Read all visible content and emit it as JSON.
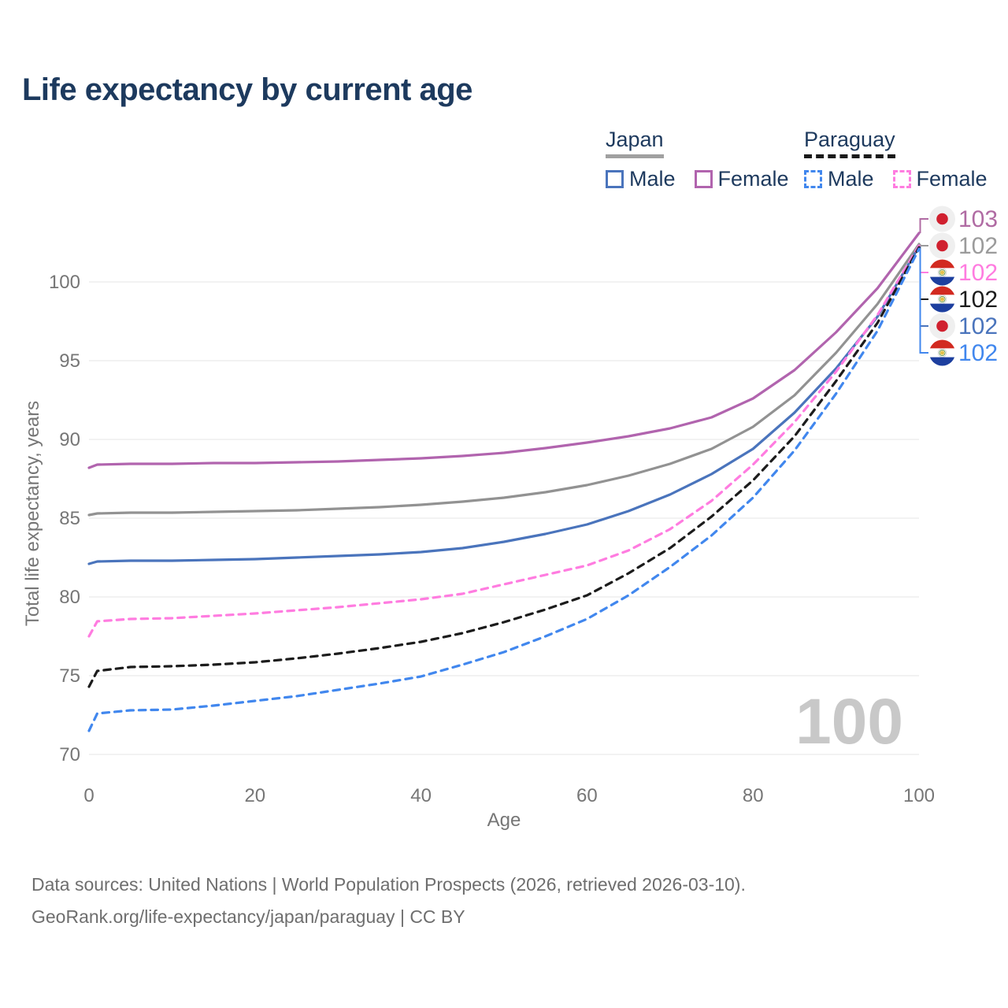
{
  "page": {
    "title": "Life expectancy by current age"
  },
  "colors": {
    "title": "#1d3a5e",
    "legend_text": "#1e3a5e",
    "japan_underline": "#a0a0a0",
    "paraguay_underline": "#1a1a1a",
    "japan_male": "#4a74bc",
    "japan_female": "#b164ae",
    "japan_both": "#929292",
    "paraguay_male": "#4187ee",
    "paraguay_female": "#ff7ce0",
    "paraguay_both": "#1c1c1c",
    "grid": "#e9e9e9",
    "axis_text": "#767676",
    "watermark": "#c8c8c8",
    "footer_text": "#6e6e6e",
    "flag_japan_bg": "#efefef",
    "flag_japan_sun": "#d0202f",
    "flag_paraguay_red": "#d22a20",
    "flag_paraguay_blue": "#1d3f9f",
    "flag_paraguay_white": "#ffffff",
    "flag_emblem_yellow": "#e3c14b",
    "flag_emblem_green": "#5e9444"
  },
  "legend": {
    "japan": {
      "label": "Japan",
      "male": "Male",
      "female": "Female"
    },
    "paraguay": {
      "label": "Paraguay",
      "male": "Male",
      "female": "Female"
    }
  },
  "chart_data": {
    "type": "line",
    "title": "Life expectancy by current age",
    "xlabel": "Age",
    "ylabel": "Total life expectancy, years",
    "xlim": [
      0,
      100
    ],
    "ylim": [
      70,
      103.5
    ],
    "x_ticks": [
      0,
      20,
      40,
      60,
      80,
      100
    ],
    "y_ticks": [
      70,
      75,
      80,
      85,
      90,
      95,
      100
    ],
    "grid": "horizontal-only",
    "legend_position": "top-right",
    "watermark": "100",
    "ages": [
      0,
      1,
      5,
      10,
      15,
      20,
      25,
      30,
      35,
      40,
      45,
      50,
      55,
      60,
      65,
      70,
      75,
      80,
      85,
      90,
      95,
      100
    ],
    "series": [
      {
        "id": "japan-female",
        "name": "Japan Female",
        "country": "Japan",
        "sex": "Female",
        "color": "#b164ae",
        "dash": "solid",
        "flag": "japan",
        "label_row": 0,
        "end_label": "103",
        "label_color": "#b06ba3",
        "values": [
          88.2,
          88.4,
          88.45,
          88.45,
          88.5,
          88.5,
          88.55,
          88.6,
          88.7,
          88.8,
          88.95,
          89.15,
          89.45,
          89.8,
          90.2,
          90.7,
          91.4,
          92.6,
          94.4,
          96.8,
          99.6,
          103.1
        ]
      },
      {
        "id": "japan-both",
        "name": "Japan",
        "country": "Japan",
        "sex": "Both",
        "color": "#929292",
        "dash": "solid",
        "flag": "japan",
        "label_row": 1,
        "end_label": "102",
        "label_color": "#9b9b9b",
        "values": [
          85.2,
          85.3,
          85.35,
          85.35,
          85.4,
          85.45,
          85.5,
          85.6,
          85.7,
          85.85,
          86.05,
          86.3,
          86.65,
          87.1,
          87.7,
          88.45,
          89.4,
          90.8,
          92.8,
          95.5,
          98.6,
          102.4
        ]
      },
      {
        "id": "japan-male",
        "name": "Japan Male",
        "country": "Japan",
        "sex": "Male",
        "color": "#4a74bc",
        "dash": "solid",
        "flag": "japan",
        "label_row": 4,
        "end_label": "102",
        "label_color": "#4a74bc",
        "values": [
          82.1,
          82.25,
          82.3,
          82.3,
          82.35,
          82.4,
          82.5,
          82.6,
          82.7,
          82.85,
          83.1,
          83.5,
          84.0,
          84.6,
          85.45,
          86.5,
          87.8,
          89.4,
          91.7,
          94.5,
          97.8,
          102.25
        ]
      },
      {
        "id": "paraguay-female",
        "name": "Paraguay Female",
        "country": "Paraguay",
        "sex": "Female",
        "color": "#ff7ce0",
        "dash": "dashed",
        "flag": "paraguay",
        "label_row": 2,
        "end_label": "102",
        "label_color": "#ff7ce0",
        "values": [
          77.5,
          78.45,
          78.6,
          78.65,
          78.8,
          78.95,
          79.15,
          79.35,
          79.6,
          79.85,
          80.2,
          80.8,
          81.4,
          82.0,
          82.95,
          84.3,
          86.1,
          88.4,
          91.1,
          94.3,
          97.9,
          102.3
        ]
      },
      {
        "id": "paraguay-both",
        "name": "Paraguay",
        "country": "Paraguay",
        "sex": "Both",
        "color": "#1c1c1c",
        "dash": "dashed",
        "flag": "paraguay",
        "label_row": 3,
        "end_label": "102",
        "label_color": "#1c1c1c",
        "values": [
          74.3,
          75.3,
          75.55,
          75.6,
          75.7,
          75.85,
          76.1,
          76.4,
          76.75,
          77.15,
          77.7,
          78.4,
          79.2,
          80.1,
          81.5,
          83.1,
          85.1,
          87.4,
          90.2,
          93.7,
          97.4,
          102.2
        ]
      },
      {
        "id": "paraguay-male",
        "name": "Paraguay Male",
        "country": "Paraguay",
        "sex": "Male",
        "color": "#4187ee",
        "dash": "dashed",
        "flag": "paraguay",
        "label_row": 5,
        "end_label": "102",
        "label_color": "#4187ee",
        "values": [
          71.5,
          72.6,
          72.8,
          72.85,
          73.1,
          73.4,
          73.7,
          74.1,
          74.5,
          74.95,
          75.7,
          76.5,
          77.5,
          78.6,
          80.1,
          81.9,
          83.9,
          86.3,
          89.3,
          92.9,
          96.9,
          102.1
        ]
      }
    ]
  },
  "footer": {
    "line1": "Data sources: United Nations | World Population Prospects (2026, retrieved 2026-03-10).",
    "line2": "GeoRank.org/life-expectancy/japan/paraguay | CC BY"
  }
}
